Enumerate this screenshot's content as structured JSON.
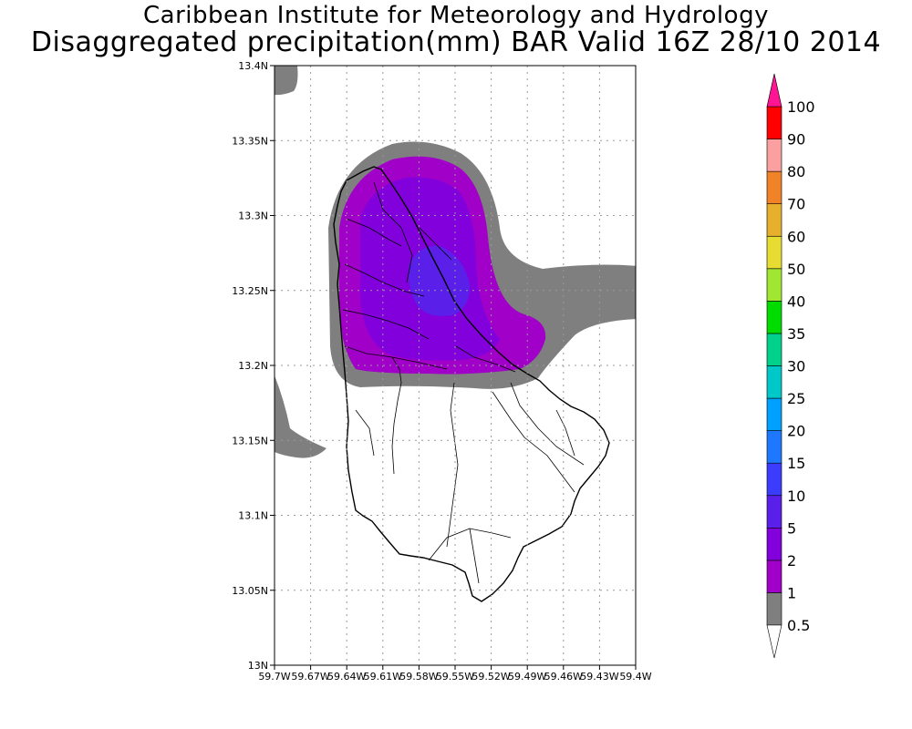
{
  "header": {
    "institute": "Caribbean Institute for Meteorology and Hydrology",
    "product": "Disaggregated precipitation(mm) BAR Valid 16Z 28/10 2014"
  },
  "map": {
    "region": "Barbados",
    "lon_range": [
      -59.7,
      -59.4
    ],
    "lat_range": [
      13.0,
      13.4
    ],
    "grid": true,
    "x_ticks": [
      "59.7W",
      "59.67W",
      "59.64W",
      "59.61W",
      "59.58W",
      "59.55W",
      "59.52W",
      "59.49W",
      "59.46W",
      "59.43W",
      "59.4W"
    ],
    "y_ticks": [
      "13N",
      "13.05N",
      "13.1N",
      "13.15N",
      "13.2N",
      "13.25N",
      "13.3N",
      "13.35N",
      "13.4N"
    ]
  },
  "colorbar": {
    "levels": [
      "0.5",
      "1",
      "2",
      "5",
      "10",
      "15",
      "20",
      "25",
      "30",
      "35",
      "40",
      "50",
      "60",
      "70",
      "80",
      "90",
      "100"
    ],
    "bin_colors": [
      "#7f7f7f",
      "#a000c8",
      "#8200dc",
      "#5a1fe8",
      "#3c3cff",
      "#1e78ff",
      "#00a0ff",
      "#00c8c8",
      "#00d28c",
      "#00dc00",
      "#a0e632",
      "#e6dc32",
      "#e6af2d",
      "#f08228",
      "#faa0a0",
      "#ff0000",
      "#ff3c3c"
    ],
    "top_arrow_color": "#ff1493",
    "bottom_arrow_color": "#ffffff"
  }
}
